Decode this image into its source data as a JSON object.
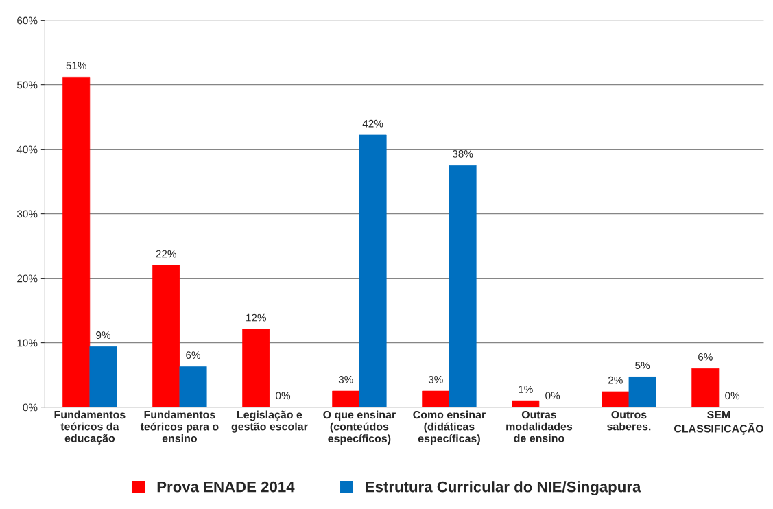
{
  "chart_data": {
    "type": "bar",
    "categories": [
      "Fundamentos\nteóricos da\neducação",
      "Fundamentos\nteóricos para o\nensino",
      "Legislação e\ngestão escolar",
      "O que ensinar\n(conteúdos\nespecíficos)",
      "Como ensinar\n(didáticas\nespecíficas)",
      "Outras\nmodalidades\nde ensino",
      "Outros\nsaberes.",
      "SEM\nCLASSIFICAÇÃO"
    ],
    "series": [
      {
        "name": "Prova ENADE 2014",
        "color": "#ff0000",
        "values": [
          51.2,
          22.0,
          12.1,
          2.5,
          2.5,
          1.0,
          2.4,
          6.0
        ],
        "value_labels": [
          "51%",
          "22%",
          "12%",
          "3%",
          "3%",
          "1%",
          "2%",
          "6%"
        ]
      },
      {
        "name": "Estrutura Curricular do NIE/Singapura",
        "color": "#0070c0",
        "values": [
          9.4,
          6.3,
          0,
          42.2,
          37.5,
          0,
          4.7,
          0
        ],
        "value_labels": [
          "9%",
          "6%",
          "0%",
          "42%",
          "38%",
          "0%",
          "5%",
          "0%"
        ]
      }
    ],
    "ylim": [
      0,
      60
    ],
    "yticks": [
      {
        "value": 0,
        "label": "0%"
      },
      {
        "value": 10,
        "label": "10%"
      },
      {
        "value": 20,
        "label": "20%"
      },
      {
        "value": 30,
        "label": "30%"
      },
      {
        "value": 40,
        "label": "40%"
      },
      {
        "value": 50,
        "label": "50%"
      },
      {
        "value": 60,
        "label": "60%"
      }
    ],
    "grid": "y",
    "legend": "bottom"
  }
}
